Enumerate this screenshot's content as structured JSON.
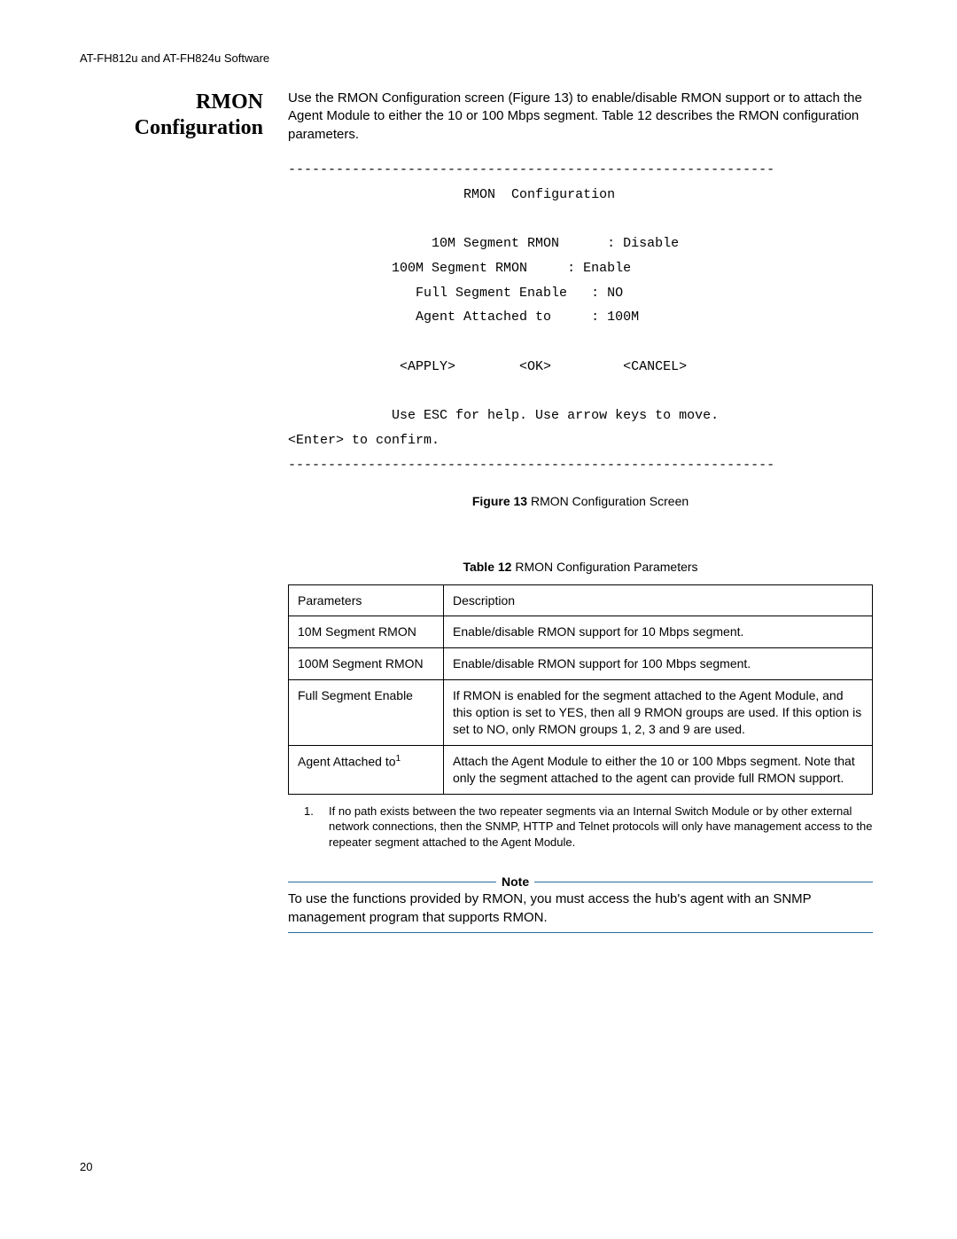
{
  "header": "AT-FH812u and AT-FH824u Software",
  "section_title_l1": "RMON",
  "section_title_l2": "Configuration",
  "intro": "Use the RMON Configuration screen (Figure 13) to enable/disable RMON support or to attach the Agent Module to either the 10 or 100 Mbps segment. Table 12 describes the RMON configuration parameters.",
  "terminal": {
    "divider": "-------------------------------------------------------------",
    "title": "RMON  Configuration",
    "row1": "10M Segment RMON      : Disable",
    "row2": "100M Segment RMON     : Enable",
    "row3": "Full Segment Enable   : NO",
    "row4": "Agent Attached to     : 100M",
    "buttons": "<APPLY>        <OK>         <CANCEL>",
    "help": "Use ESC for help. Use arrow keys to move.",
    "confirm": "<Enter> to confirm."
  },
  "fig_caption_bold": "Figure 13",
  "fig_caption_rest": "  RMON Configuration Screen",
  "table_caption_bold": "Table 12",
  "table_caption_rest": "  RMON Configuration Parameters",
  "table": {
    "headers": [
      "Parameters",
      "Description"
    ],
    "rows": [
      [
        "10M Segment RMON",
        "Enable/disable RMON support for 10 Mbps segment."
      ],
      [
        "100M Segment RMON",
        "Enable/disable RMON support for 100 Mbps segment."
      ],
      [
        "Full Segment Enable",
        "If RMON is enabled for the segment attached to the Agent Module, and this option is set to YES, then all 9 RMON groups are used. If this option is set to NO, only RMON groups 1, 2, 3 and 9 are used."
      ],
      [
        "Agent Attached to",
        "Attach the Agent Module to either the 10 or 100 Mbps segment. Note that only the segment attached to the agent can provide full RMON support."
      ]
    ],
    "footnote_marker": "1"
  },
  "footnote": {
    "num": "1.",
    "text": "If no path exists between the two repeater segments via an Internal Switch Module or by other external network connections, then the SNMP, HTTP and Telnet protocols will only have management access to the repeater segment attached to the Agent Module."
  },
  "note": {
    "label": "Note",
    "body": "To use the functions provided by RMON, you must access the hub's agent with an SNMP management program that supports RMON.",
    "line_color": "#266a9e"
  },
  "page_number": "20"
}
